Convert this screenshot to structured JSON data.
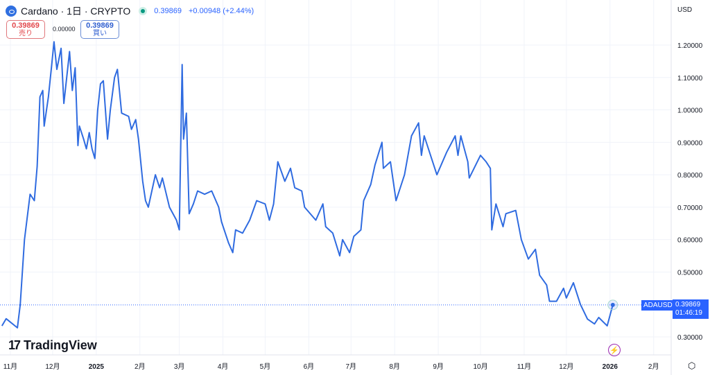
{
  "header": {
    "title": "Cardano · 1日 · CRYPTO",
    "last": "0.39869",
    "change": "+0.00948 (+2.44%)"
  },
  "trade": {
    "sell_price": "0.39869",
    "sell_label": "売り",
    "spread": "0.00000",
    "buy_price": "0.39869",
    "buy_label": "買い"
  },
  "currency": "USD",
  "brand": "TradingView",
  "symbol_label": "ADAUSD",
  "last_price_label": "0.39869",
  "countdown": "01:46:19",
  "colors": {
    "line": "#2f6be0",
    "accent": "#2962ff",
    "sell": "#e2474b",
    "positive": "#089981"
  },
  "icons": {
    "flash": "lightning-icon",
    "settings": "gear-icon"
  },
  "chart_data": {
    "type": "line",
    "title": "Cardano · 1日 · CRYPTO",
    "ylim": [
      0.25,
      1.25
    ],
    "y_ticks": [
      "1.20000",
      "1.10000",
      "1.00000",
      "0.90000",
      "0.80000",
      "0.70000",
      "0.60000",
      "0.50000",
      "0.30000"
    ],
    "x_ticks": [
      [
        "2024-11-01",
        "11月"
      ],
      [
        "2024-12-01",
        "12月"
      ],
      [
        "2025-01-01",
        "2025"
      ],
      [
        "2025-02-01",
        "2月"
      ],
      [
        "2025-03-01",
        "3月"
      ],
      [
        "2025-04-01",
        "4月"
      ],
      [
        "2025-05-01",
        "5月"
      ],
      [
        "2025-06-01",
        "6月"
      ],
      [
        "2025-07-01",
        "7月"
      ],
      [
        "2025-08-01",
        "8月"
      ],
      [
        "2025-09-01",
        "9月"
      ],
      [
        "2025-10-01",
        "10月"
      ],
      [
        "2025-11-01",
        "11月"
      ],
      [
        "2025-12-01",
        "12月"
      ],
      [
        "2026-01-01",
        "2026"
      ],
      [
        "2026-02-01",
        "2月"
      ]
    ],
    "grid": true,
    "series": [
      {
        "points": [
          [
            "2024-10-26",
            0.334
          ],
          [
            "2024-10-29",
            0.356
          ],
          [
            "2024-11-06",
            0.328
          ],
          [
            "2024-11-08",
            0.4
          ],
          [
            "2024-11-11",
            0.6
          ],
          [
            "2024-11-15",
            0.74
          ],
          [
            "2024-11-18",
            0.72
          ],
          [
            "2024-11-20",
            0.826
          ],
          [
            "2024-11-22",
            1.04
          ],
          [
            "2024-11-24",
            1.06
          ],
          [
            "2024-11-25",
            0.95
          ],
          [
            "2024-11-28",
            1.04
          ],
          [
            "2024-11-30",
            1.125
          ],
          [
            "2024-12-02",
            1.21
          ],
          [
            "2024-12-04",
            1.125
          ],
          [
            "2024-12-07",
            1.19
          ],
          [
            "2024-12-09",
            1.02
          ],
          [
            "2024-12-11",
            1.1
          ],
          [
            "2024-12-13",
            1.18
          ],
          [
            "2024-12-15",
            1.06
          ],
          [
            "2024-12-17",
            1.13
          ],
          [
            "2024-12-19",
            0.89
          ],
          [
            "2024-12-20",
            0.95
          ],
          [
            "2024-12-23",
            0.91
          ],
          [
            "2024-12-25",
            0.88
          ],
          [
            "2024-12-27",
            0.93
          ],
          [
            "2024-12-29",
            0.88
          ],
          [
            "2024-12-31",
            0.85
          ],
          [
            "2025-01-02",
            1.0
          ],
          [
            "2025-01-04",
            1.08
          ],
          [
            "2025-01-06",
            1.09
          ],
          [
            "2025-01-09",
            0.91
          ],
          [
            "2025-01-11",
            1.0
          ],
          [
            "2025-01-14",
            1.1
          ],
          [
            "2025-01-16",
            1.125
          ],
          [
            "2025-01-19",
            0.99
          ],
          [
            "2025-01-24",
            0.98
          ],
          [
            "2025-01-26",
            0.94
          ],
          [
            "2025-01-29",
            0.97
          ],
          [
            "2025-01-31",
            0.91
          ],
          [
            "2025-02-03",
            0.78
          ],
          [
            "2025-02-05",
            0.72
          ],
          [
            "2025-02-07",
            0.7
          ],
          [
            "2025-02-12",
            0.8
          ],
          [
            "2025-02-15",
            0.76
          ],
          [
            "2025-02-17",
            0.79
          ],
          [
            "2025-02-22",
            0.7
          ],
          [
            "2025-02-27",
            0.66
          ],
          [
            "2025-03-01",
            0.63
          ],
          [
            "2025-03-03",
            1.14
          ],
          [
            "2025-03-04",
            0.91
          ],
          [
            "2025-03-06",
            0.99
          ],
          [
            "2025-03-08",
            0.68
          ],
          [
            "2025-03-11",
            0.71
          ],
          [
            "2025-03-14",
            0.75
          ],
          [
            "2025-03-19",
            0.74
          ],
          [
            "2025-03-24",
            0.75
          ],
          [
            "2025-03-29",
            0.7
          ],
          [
            "2025-03-31",
            0.655
          ],
          [
            "2025-04-05",
            0.59
          ],
          [
            "2025-04-08",
            0.56
          ],
          [
            "2025-04-10",
            0.63
          ],
          [
            "2025-04-15",
            0.62
          ],
          [
            "2025-04-20",
            0.66
          ],
          [
            "2025-04-25",
            0.72
          ],
          [
            "2025-05-01",
            0.71
          ],
          [
            "2025-05-04",
            0.66
          ],
          [
            "2025-05-07",
            0.71
          ],
          [
            "2025-05-10",
            0.84
          ],
          [
            "2025-05-15",
            0.78
          ],
          [
            "2025-05-19",
            0.82
          ],
          [
            "2025-05-22",
            0.76
          ],
          [
            "2025-05-27",
            0.75
          ],
          [
            "2025-05-29",
            0.7
          ],
          [
            "2025-06-06",
            0.66
          ],
          [
            "2025-06-11",
            0.71
          ],
          [
            "2025-06-13",
            0.64
          ],
          [
            "2025-06-18",
            0.62
          ],
          [
            "2025-06-23",
            0.55
          ],
          [
            "2025-06-25",
            0.6
          ],
          [
            "2025-06-30",
            0.56
          ],
          [
            "2025-07-03",
            0.61
          ],
          [
            "2025-07-08",
            0.63
          ],
          [
            "2025-07-10",
            0.72
          ],
          [
            "2025-07-15",
            0.77
          ],
          [
            "2025-07-18",
            0.83
          ],
          [
            "2025-07-23",
            0.9
          ],
          [
            "2025-07-24",
            0.82
          ],
          [
            "2025-07-29",
            0.84
          ],
          [
            "2025-08-02",
            0.72
          ],
          [
            "2025-08-08",
            0.8
          ],
          [
            "2025-08-13",
            0.92
          ],
          [
            "2025-08-18",
            0.96
          ],
          [
            "2025-08-20",
            0.86
          ],
          [
            "2025-08-22",
            0.92
          ],
          [
            "2025-08-28",
            0.84
          ],
          [
            "2025-08-31",
            0.8
          ],
          [
            "2025-09-07",
            0.87
          ],
          [
            "2025-09-13",
            0.92
          ],
          [
            "2025-09-15",
            0.86
          ],
          [
            "2025-09-17",
            0.92
          ],
          [
            "2025-09-22",
            0.84
          ],
          [
            "2025-09-23",
            0.79
          ],
          [
            "2025-10-01",
            0.86
          ],
          [
            "2025-10-05",
            0.84
          ],
          [
            "2025-10-08",
            0.82
          ],
          [
            "2025-10-09",
            0.63
          ],
          [
            "2025-10-12",
            0.71
          ],
          [
            "2025-10-17",
            0.64
          ],
          [
            "2025-10-19",
            0.68
          ],
          [
            "2025-10-26",
            0.69
          ],
          [
            "2025-10-30",
            0.6
          ],
          [
            "2025-11-04",
            0.54
          ],
          [
            "2025-11-09",
            0.57
          ],
          [
            "2025-11-12",
            0.49
          ],
          [
            "2025-11-17",
            0.46
          ],
          [
            "2025-11-19",
            0.41
          ],
          [
            "2025-11-24",
            0.41
          ],
          [
            "2025-11-29",
            0.45
          ],
          [
            "2025-12-01",
            0.42
          ],
          [
            "2025-12-06",
            0.467
          ],
          [
            "2025-12-11",
            0.4
          ],
          [
            "2025-12-16",
            0.355
          ],
          [
            "2025-12-21",
            0.34
          ],
          [
            "2025-12-24",
            0.36
          ],
          [
            "2025-12-30",
            0.334
          ],
          [
            "2026-01-03",
            0.39869
          ]
        ]
      }
    ]
  }
}
